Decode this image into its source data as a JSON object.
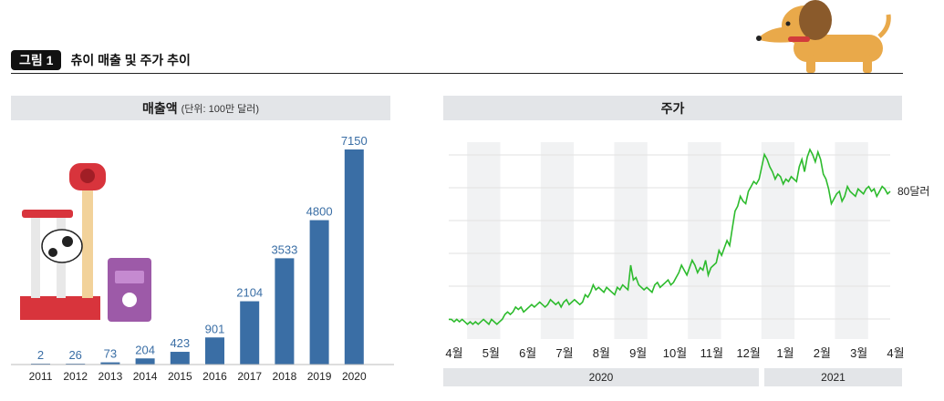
{
  "figure": {
    "badge": "그림 1",
    "title": "츄이 매출 및 주가 추이"
  },
  "left_panel": {
    "title": "매출액",
    "unit": "(단위: 100만 달러)"
  },
  "right_panel": {
    "title": "주가",
    "end_label": "80달러",
    "year_labels": [
      "2020",
      "2021"
    ]
  },
  "colors": {
    "bar": "#3a6ea5",
    "line": "#2dbb2d",
    "shade": "#f1f2f3",
    "header": "#e3e5e8"
  },
  "chart_data": [
    {
      "type": "bar",
      "title": "매출액",
      "categories": [
        "2011",
        "2012",
        "2013",
        "2014",
        "2015",
        "2016",
        "2017",
        "2018",
        "2019",
        "2020"
      ],
      "values": [
        2,
        26,
        73,
        204,
        423,
        901,
        2104,
        3533,
        4800,
        7150
      ],
      "ylim": [
        0,
        7150
      ]
    },
    {
      "type": "line",
      "title": "주가",
      "x_tick_labels": [
        "4월",
        "5월",
        "6월",
        "7월",
        "8월",
        "9월",
        "10월",
        "11월",
        "12월",
        "1월",
        "2월",
        "3월",
        "4월"
      ],
      "values": [
        28,
        28,
        27,
        28,
        27,
        28,
        27,
        26,
        27,
        26,
        27,
        26,
        27,
        28,
        27,
        26,
        28,
        27,
        26,
        27,
        28,
        30,
        31,
        30,
        31,
        33,
        32,
        33,
        31,
        32,
        33,
        34,
        33,
        34,
        35,
        34,
        33,
        34,
        36,
        35,
        34,
        35,
        33,
        35,
        36,
        34,
        35,
        36,
        35,
        34,
        35,
        38,
        37,
        39,
        42,
        40,
        41,
        40,
        39,
        41,
        40,
        39,
        38,
        41,
        40,
        42,
        41,
        40,
        50,
        44,
        45,
        42,
        41,
        40,
        41,
        40,
        39,
        42,
        43,
        41,
        42,
        43,
        44,
        42,
        43,
        45,
        47,
        50,
        48,
        46,
        49,
        52,
        50,
        47,
        49,
        48,
        52,
        46,
        49,
        50,
        51,
        56,
        54,
        57,
        60,
        58,
        65,
        72,
        74,
        78,
        76,
        75,
        80,
        82,
        84,
        83,
        85,
        90,
        95,
        93,
        90,
        88,
        85,
        87,
        86,
        83,
        85,
        84,
        86,
        85,
        84,
        90,
        93,
        88,
        94,
        97,
        95,
        92,
        96,
        93,
        87,
        85,
        81,
        75,
        77,
        79,
        80,
        76,
        78,
        82,
        80,
        79,
        78,
        81,
        80,
        79,
        81,
        82,
        80,
        81,
        78,
        80,
        82,
        81,
        79,
        80
      ]
    }
  ]
}
